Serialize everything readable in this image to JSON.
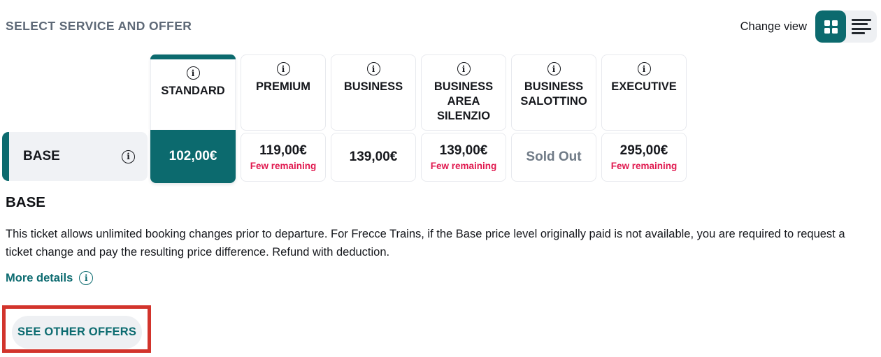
{
  "header": {
    "title": "SELECT SERVICE AND OFFER",
    "change_view_label": "Change view",
    "view_toggle": {
      "active_view": "grid",
      "grid_icon": "grid-view-icon",
      "list_icon": "list-view-icon"
    }
  },
  "colors": {
    "brand_teal": "#0c6a6e",
    "link_teal": "#0c6b70",
    "few_remaining_red": "#e0194f",
    "annotation_red": "#d2342c",
    "label_background": "#f0f2f5",
    "cell_border": "#e7e9ee",
    "title_gray": "#5e6977",
    "soldout_gray": "#6f7a86"
  },
  "services": [
    {
      "name": "STANDARD",
      "selected": true
    },
    {
      "name": "PREMIUM",
      "selected": false
    },
    {
      "name": "BUSINESS",
      "selected": false
    },
    {
      "name": "BUSINESS AREA SILENZIO",
      "selected": false
    },
    {
      "name": "BUSINESS SALOTTINO",
      "selected": false
    },
    {
      "name": "EXECUTIVE",
      "selected": false
    }
  ],
  "offer_row": {
    "label": "BASE",
    "cells": [
      {
        "price": "102,00€",
        "note": "",
        "selected": true
      },
      {
        "price": "119,00€",
        "note": "Few remaining",
        "selected": false
      },
      {
        "price": "139,00€",
        "note": "",
        "selected": false
      },
      {
        "price": "139,00€",
        "note": "Few remaining",
        "selected": false
      },
      {
        "sold_out": "Sold Out",
        "selected": false
      },
      {
        "price": "295,00€",
        "note": "Few remaining",
        "selected": false
      }
    ]
  },
  "details": {
    "heading": "BASE",
    "description": "This ticket allows unlimited booking changes prior to departure. For Frecce Trains, if the Base price level originally paid is not available, you are required to request a ticket change and pay the resulting price difference. Refund with deduction.",
    "more_details_label": "More details",
    "see_other_offers_label": "SEE OTHER OFFERS"
  }
}
